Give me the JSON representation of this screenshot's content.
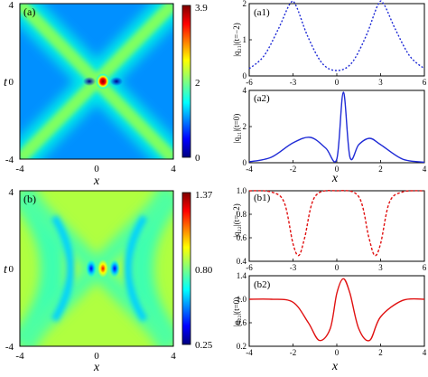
{
  "chart_data": [
    {
      "panel": "(a)",
      "type": "heatmap",
      "xlabel": "x",
      "ylabel": "t",
      "xlim": [
        -4,
        4
      ],
      "ylim": [
        -4,
        4
      ],
      "xticks": [
        "-4",
        "0",
        "4"
      ],
      "yticks": [
        "4",
        "0",
        "-4"
      ],
      "colorbar": {
        "ticks": [
          "3.9",
          "2",
          "0"
        ],
        "range": [
          0,
          3.9
        ]
      },
      "description_values": {
        "background": 0.5,
        "ridge": 2.0,
        "peak": 3.9
      }
    },
    {
      "panel": "(a1)",
      "type": "line",
      "ylabel": "|q21|(t=−2)",
      "xlim": [
        -6,
        6
      ],
      "ylim": [
        0,
        2
      ],
      "xticks": [
        "-6",
        "-3",
        "0",
        "3",
        "6"
      ],
      "yticks": [
        "2",
        "1",
        "0"
      ],
      "series": [
        {
          "style": "dotted",
          "x": [
            -6,
            -5,
            -4,
            -3.2,
            -2.8,
            -2,
            -1,
            0,
            1,
            2,
            2.8,
            3.2,
            4,
            5,
            6
          ],
          "y": [
            0.2,
            0.55,
            1.3,
            2.0,
            1.95,
            1.1,
            0.35,
            0.15,
            0.35,
            1.1,
            1.95,
            2.0,
            1.3,
            0.55,
            0.2
          ]
        }
      ]
    },
    {
      "panel": "(a2)",
      "type": "line",
      "ylabel": "|q21|(t=0)",
      "xlim": [
        -4,
        4
      ],
      "ylim": [
        0,
        4
      ],
      "xticks": [
        "-4",
        "-2",
        "0",
        "2",
        "4"
      ],
      "yticks": [
        "4",
        "2",
        "0"
      ],
      "series": [
        {
          "style": "solid",
          "x": [
            -4,
            -3,
            -2,
            -1.2,
            -0.5,
            0,
            0.3,
            0.6,
            1,
            1.5,
            2,
            3,
            4
          ],
          "y": [
            0.05,
            0.3,
            1.1,
            1.4,
            0.8,
            0.2,
            3.9,
            0.3,
            1.0,
            1.35,
            1.0,
            0.2,
            0.03
          ]
        }
      ]
    },
    {
      "panel": "(b)",
      "type": "heatmap",
      "xlabel": "x",
      "ylabel": "t",
      "xlim": [
        -4,
        4
      ],
      "ylim": [
        -4,
        4
      ],
      "xticks": [
        "-4",
        "0",
        "4"
      ],
      "yticks": [
        "4",
        "0",
        "-4"
      ],
      "colorbar": {
        "ticks": [
          "1.37",
          "0.80",
          "0.25"
        ],
        "range": [
          0.25,
          1.37
        ]
      },
      "description_values": {
        "background": 1.0,
        "trough": 0.3,
        "peak": 1.37
      }
    },
    {
      "panel": "(b1)",
      "type": "line",
      "ylabel": "|q22|(t=−2)",
      "xlim": [
        -6,
        6
      ],
      "ylim": [
        0.4,
        1.0
      ],
      "xticks": [
        "-6",
        "-3",
        "0",
        "3",
        "6"
      ],
      "yticks": [
        "1.0",
        "0.8",
        "0.6",
        "0.4"
      ],
      "series": [
        {
          "style": "dashed",
          "x": [
            -6,
            -4.5,
            -3.6,
            -3,
            -2.6,
            -2.2,
            -1.5,
            0,
            1.5,
            2.2,
            2.6,
            3,
            3.6,
            4.5,
            6
          ],
          "y": [
            1.0,
            0.99,
            0.9,
            0.55,
            0.45,
            0.6,
            0.95,
            1.0,
            0.95,
            0.6,
            0.45,
            0.55,
            0.9,
            0.99,
            1.0
          ]
        }
      ]
    },
    {
      "panel": "(b2)",
      "type": "line",
      "ylabel": "|q22|(t=0)",
      "xlim": [
        -4,
        4
      ],
      "ylim": [
        0.2,
        1.4
      ],
      "xticks": [
        "-4",
        "-2",
        "0",
        "2",
        "4"
      ],
      "yticks": [
        "1.4",
        "1.0",
        "0.6",
        "0.2"
      ],
      "series": [
        {
          "style": "solid",
          "x": [
            -4,
            -3,
            -2,
            -1.3,
            -0.8,
            -0.3,
            0,
            0.3,
            0.6,
            1,
            1.5,
            2,
            3,
            4
          ],
          "y": [
            1.0,
            1.0,
            0.95,
            0.6,
            0.3,
            0.5,
            1.1,
            1.35,
            1.1,
            0.5,
            0.3,
            0.7,
            0.98,
            1.0
          ]
        }
      ]
    }
  ],
  "labels": {
    "a": "(a)",
    "a1": "(a1)",
    "a2": "(a2)",
    "b": "(b)",
    "b1": "(b1)",
    "b2": "(b2)",
    "x": "x",
    "t": "t",
    "ylabel_a1": "|q₂₁|(t=−2)",
    "ylabel_a2": "|q₂₁|(t=0)",
    "ylabel_b1": "|q₂₂|(t=−2)",
    "ylabel_b2": "|q₂₂|(t=0)"
  },
  "colors": {
    "line_blue": "#1f2bd6",
    "line_red": "#e01010",
    "jet": [
      "#00007f",
      "#0000ff",
      "#00ffff",
      "#7fff00",
      "#ffff00",
      "#ff0000",
      "#7f0000"
    ]
  }
}
